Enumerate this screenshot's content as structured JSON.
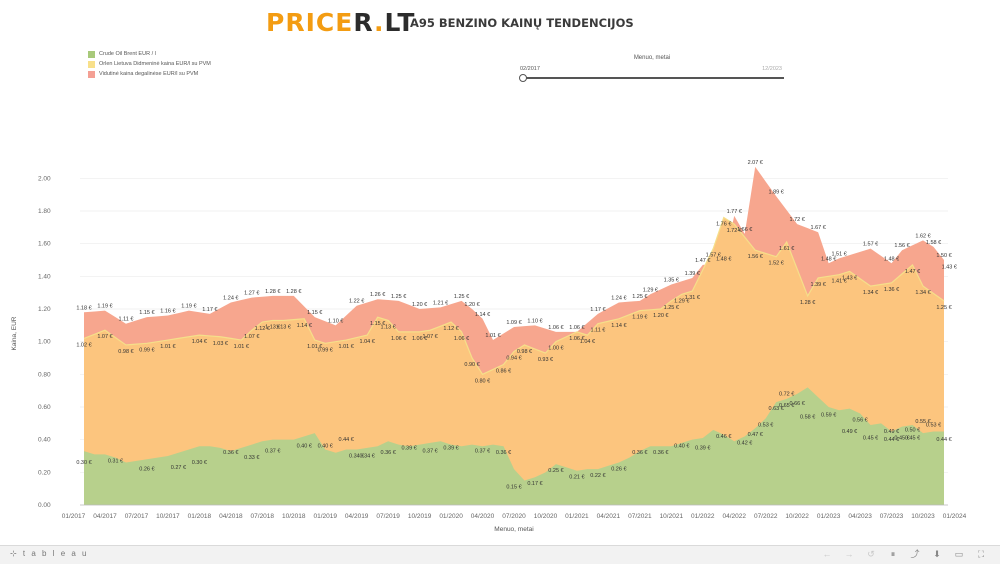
{
  "header": {
    "logo_pre": "PRICE",
    "logo_r": "R",
    "logo_dot": ".",
    "logo_lt": "LT",
    "title": "A95 BENZINO KAINŲ TENDENCIJOS"
  },
  "legend": [
    {
      "label": "Crude Oil Brent EUR / l",
      "color": "#a8c97a"
    },
    {
      "label": "Orlen Lietuva Didmeninė kaina EUR/l su PVM",
      "color": "#f8e08a"
    },
    {
      "label": "Vidutinė kaina degalinėse EUR/l su PVM",
      "color": "#f4a094"
    }
  ],
  "filter": {
    "title": "Menuo, metai",
    "from": "02/2017",
    "to": "12/2023"
  },
  "footer": {
    "brand": "⊹ t a b l e a u",
    "icons": [
      {
        "name": "undo-icon",
        "glyph": "←"
      },
      {
        "name": "redo-icon",
        "glyph": "→"
      },
      {
        "name": "revert-icon",
        "glyph": "↺"
      },
      {
        "name": "pause-icon",
        "glyph": "⏸"
      },
      {
        "name": "share-icon",
        "glyph": "⤴"
      },
      {
        "name": "download-icon",
        "glyph": "⬇"
      },
      {
        "name": "comment-icon",
        "glyph": "▭"
      },
      {
        "name": "fullscreen-icon",
        "glyph": "⛶"
      }
    ]
  },
  "chart_data": {
    "type": "area",
    "xlabel": "Menuo, metai",
    "ylabel": "Kaina, EUR",
    "ylim": [
      0,
      2.1
    ],
    "yticks": [
      "0.00",
      "0.20",
      "0.40",
      "0.60",
      "0.80",
      "1.00",
      "1.20",
      "1.40",
      "1.60",
      "1.80",
      "2.00"
    ],
    "xticks": [
      "01/2017",
      "04/2017",
      "07/2017",
      "10/2017",
      "01/2018",
      "04/2018",
      "07/2018",
      "10/2018",
      "01/2019",
      "04/2019",
      "07/2019",
      "10/2019",
      "01/2020",
      "04/2020",
      "07/2020",
      "10/2020",
      "01/2021",
      "04/2021",
      "07/2021",
      "10/2021",
      "01/2022",
      "04/2022",
      "07/2022",
      "10/2022",
      "01/2023",
      "04/2023",
      "07/2023",
      "10/2023",
      "01/2024"
    ],
    "x_start": "02/2017",
    "label_suffix": " €",
    "series": [
      {
        "name": "Crude Oil Brent EUR / l",
        "color": "#b5cf8a",
        "values": [
          0.33,
          0.31,
          0.31,
          0.29,
          0.26,
          0.27,
          0.28,
          0.29,
          0.3,
          0.32,
          0.34,
          0.36,
          0.36,
          0.35,
          0.33,
          0.35,
          0.37,
          0.39,
          0.4,
          0.4,
          0.4,
          0.42,
          0.44,
          0.34,
          0.32,
          0.34,
          0.34,
          0.35,
          0.36,
          0.39,
          0.37,
          0.36,
          0.37,
          0.38,
          0.39,
          0.37,
          0.36,
          0.37,
          0.36,
          0.37,
          0.36,
          0.22,
          0.15,
          0.17,
          0.2,
          0.25,
          0.23,
          0.21,
          0.22,
          0.22,
          0.24,
          0.26,
          0.29,
          0.33,
          0.36,
          0.36,
          0.36,
          0.38,
          0.4,
          0.41,
          0.46,
          0.43,
          0.39,
          0.42,
          0.47,
          0.53,
          0.63,
          0.65,
          0.68,
          0.72,
          0.66,
          0.6,
          0.58,
          0.59,
          0.56,
          0.49,
          0.5,
          0.45,
          0.48,
          0.49,
          0.44,
          0.45,
          0.45,
          0.45,
          0.47,
          0.5,
          0.55,
          0.53,
          0.45,
          0.44
        ],
        "labels": {
          "0": "0.30",
          "4": "0.31",
          "9": "0.26",
          "13": "0.27",
          "16": "0.30",
          "21": "0.36",
          "24": "0.33",
          "27": "0.37",
          "32": "0.40",
          "34": "0.40",
          "37": "0.44",
          "39": "0.34",
          "41": "0.34",
          "44": "0.36",
          "47": "0.39",
          "50": "0.37",
          "53": "0.39",
          "57": "0.37",
          "60": "0.36",
          "62": "0.15",
          "65": "0.17",
          "68": "0.25",
          "71": "0.21",
          "74": "0.22",
          "77": "0.26",
          "80": "0.36",
          "83": "0.36",
          "86": "0.40",
          "89": "0.39",
          "91": "0.46",
          "94": "0.42",
          "96": "0.47",
          "98": "0.53",
          "99": "0.63",
          "100": "0.65",
          "101": "0.72",
          "102": "0.66",
          "104": "0.58",
          "107": "0.59",
          "109": "0.49",
          "111": "0.56",
          "113": "0.45",
          "115": "0.49",
          "116": "0.44",
          "117": "0.45",
          "118": "0.45",
          "119": "0.50",
          "120": "0.55",
          "121": "0.53",
          "123": "0.44"
        }
      },
      {
        "name": "Orlen Lietuva Didmeninė kaina EUR/l su PVM",
        "color": "#fdc47c",
        "values": [
          1.02,
          1.07,
          1.04,
          0.98,
          0.99,
          0.99,
          1.0,
          1.01,
          1.02,
          1.04,
          1.05,
          1.03,
          1.01,
          1.07,
          1.12,
          1.13,
          1.13,
          1.14,
          1.14,
          1.01,
          1.0,
          0.99,
          1.0,
          1.01,
          1.04,
          1.1,
          1.15,
          1.13,
          1.06,
          1.08,
          1.06,
          1.08,
          1.07,
          1.1,
          1.12,
          1.14,
          1.09,
          0.9,
          0.8,
          0.86,
          0.94,
          0.98,
          0.97,
          0.93,
          0.95,
          0.99,
          1.0,
          1.04,
          1.05,
          1.1,
          1.14,
          1.19,
          1.23,
          1.2,
          1.25,
          1.29,
          1.31,
          1.35,
          1.39,
          1.42,
          1.57,
          1.72,
          1.76,
          1.58,
          1.52,
          1.56,
          1.61,
          1.52,
          1.29,
          1.39,
          1.41,
          1.43,
          1.34,
          1.37,
          1.36,
          1.38,
          1.47,
          1.52,
          1.34,
          1.25
        ],
        "labels": {}
      }
    ]
  },
  "chart_series_labels": {
    "wholesale": [
      [
        "02/2017",
        "1.02"
      ],
      [
        "04/2017",
        "1.07"
      ],
      [
        "06/2017",
        "0.98"
      ],
      [
        "08/2017",
        "0.99"
      ],
      [
        "10/2017",
        "1.01"
      ],
      [
        "01/2018",
        "1.04"
      ],
      [
        "03/2018",
        "1.03"
      ],
      [
        "05/2018",
        "1.01"
      ],
      [
        "06/2018",
        "1.07"
      ],
      [
        "07/2018",
        "1.12"
      ],
      [
        "08/2018",
        "1.13"
      ],
      [
        "09/2018",
        "1.13"
      ],
      [
        "11/2018",
        "1.14"
      ],
      [
        "12/2018",
        "1.01"
      ],
      [
        "01/2019",
        "0.99"
      ],
      [
        "03/2019",
        "1.01"
      ],
      [
        "05/2019",
        "1.04"
      ],
      [
        "06/2019",
        "1.15"
      ],
      [
        "07/2019",
        "1.13"
      ],
      [
        "08/2019",
        "1.06"
      ],
      [
        "10/2019",
        "1.06"
      ],
      [
        "11/2019",
        "1.07"
      ],
      [
        "01/2020",
        "1.12"
      ],
      [
        "02/2020",
        "1.06"
      ],
      [
        "03/2020",
        "0.90"
      ],
      [
        "04/2020",
        "0.80"
      ],
      [
        "06/2020",
        "0.86"
      ],
      [
        "07/2020",
        "0.94"
      ],
      [
        "08/2020",
        "0.98"
      ],
      [
        "10/2020",
        "0.93"
      ],
      [
        "11/2020",
        "1.00"
      ],
      [
        "01/2021",
        "1.06"
      ],
      [
        "02/2021",
        "1.04"
      ],
      [
        "03/2021",
        "1.11"
      ],
      [
        "05/2021",
        "1.14"
      ],
      [
        "07/2021",
        "1.19"
      ],
      [
        "09/2021",
        "1.20"
      ],
      [
        "10/2021",
        "1.25"
      ],
      [
        "11/2021",
        "1.29"
      ],
      [
        "12/2021",
        "1.31"
      ],
      [
        "02/2022",
        "1.57"
      ],
      [
        "03/2022",
        "1.76"
      ],
      [
        "04/2022",
        "1.72"
      ],
      [
        "06/2022",
        "1.56"
      ],
      [
        "08/2022",
        "1.52"
      ],
      [
        "09/2022",
        "1.61"
      ],
      [
        "11/2022",
        "1.28"
      ],
      [
        "12/2022",
        "1.39"
      ],
      [
        "02/2023",
        "1.41"
      ],
      [
        "03/2023",
        "1.43"
      ],
      [
        "05/2023",
        "1.34"
      ],
      [
        "07/2023",
        "1.36"
      ],
      [
        "09/2023",
        "1.47"
      ],
      [
        "10/2023",
        "1.34"
      ],
      [
        "12/2023",
        "1.25"
      ]
    ],
    "retail": [
      [
        "02/2017",
        "1.18"
      ],
      [
        "04/2017",
        "1.19"
      ],
      [
        "06/2017",
        "1.11"
      ],
      [
        "08/2017",
        "1.15"
      ],
      [
        "10/2017",
        "1.16"
      ],
      [
        "12/2017",
        "1.19"
      ],
      [
        "02/2018",
        "1.17"
      ],
      [
        "04/2018",
        "1.24"
      ],
      [
        "06/2018",
        "1.27"
      ],
      [
        "08/2018",
        "1.28"
      ],
      [
        "10/2018",
        "1.28"
      ],
      [
        "12/2018",
        "1.15"
      ],
      [
        "02/2019",
        "1.10"
      ],
      [
        "04/2019",
        "1.22"
      ],
      [
        "06/2019",
        "1.26"
      ],
      [
        "08/2019",
        "1.25"
      ],
      [
        "10/2019",
        "1.20"
      ],
      [
        "12/2019",
        "1.21"
      ],
      [
        "02/2020",
        "1.25"
      ],
      [
        "03/2020",
        "1.20"
      ],
      [
        "04/2020",
        "1.14"
      ],
      [
        "05/2020",
        "1.01"
      ],
      [
        "07/2020",
        "1.09"
      ],
      [
        "09/2020",
        "1.10"
      ],
      [
        "11/2020",
        "1.06"
      ],
      [
        "01/2021",
        "1.06"
      ],
      [
        "03/2021",
        "1.17"
      ],
      [
        "05/2021",
        "1.24"
      ],
      [
        "07/2021",
        "1.25"
      ],
      [
        "08/2021",
        "1.29"
      ],
      [
        "10/2021",
        "1.35"
      ],
      [
        "12/2021",
        "1.39"
      ],
      [
        "01/2022",
        "1.47"
      ],
      [
        "03/2022",
        "1.48"
      ],
      [
        "04/2022",
        "1.77"
      ],
      [
        "05/2022",
        "1.66"
      ],
      [
        "06/2022",
        "2.07"
      ],
      [
        "08/2022",
        "1.89"
      ],
      [
        "10/2022",
        "1.72"
      ],
      [
        "12/2022",
        "1.67"
      ],
      [
        "01/2023",
        "1.48"
      ],
      [
        "02/2023",
        "1.51"
      ],
      [
        "05/2023",
        "1.57"
      ],
      [
        "07/2023",
        "1.48"
      ],
      [
        "08/2023",
        "1.56"
      ],
      [
        "10/2023",
        "1.62"
      ],
      [
        "11/2023",
        "1.58"
      ],
      [
        "12/2023",
        "1.50"
      ],
      [
        "12/2023b",
        "1.43"
      ]
    ]
  }
}
